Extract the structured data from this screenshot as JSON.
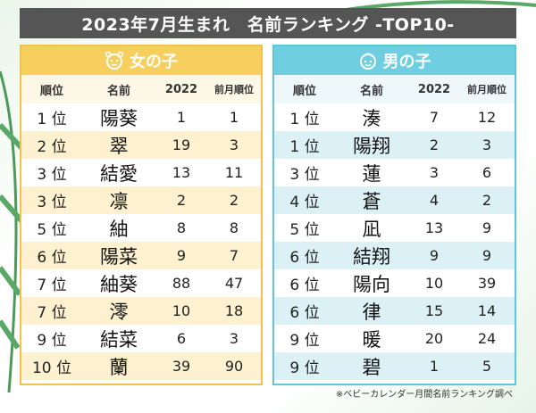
{
  "header": {
    "title": "2023年7月生まれ　名前ランキング -TOP10-"
  },
  "girls": {
    "label": "女の子",
    "columns": [
      "順位",
      "名前",
      "2022",
      "前月順位"
    ],
    "rows": [
      [
        "1 位",
        "陽葵",
        "1",
        "1"
      ],
      [
        "2 位",
        "翠",
        "19",
        "3"
      ],
      [
        "3 位",
        "結愛",
        "13",
        "11"
      ],
      [
        "3 位",
        "凛",
        "2",
        "2"
      ],
      [
        "5 位",
        "紬",
        "8",
        "8"
      ],
      [
        "6 位",
        "陽菜",
        "9",
        "7"
      ],
      [
        "7 位",
        "紬葵",
        "88",
        "47"
      ],
      [
        "7 位",
        "澪",
        "10",
        "18"
      ],
      [
        "9 位",
        "結菜",
        "6",
        "3"
      ],
      [
        "10 位",
        "蘭",
        "39",
        "90"
      ]
    ]
  },
  "boys": {
    "label": "男の子",
    "columns": [
      "順位",
      "名前",
      "2022",
      "前月順位"
    ],
    "rows": [
      [
        "1 位",
        "湊",
        "7",
        "12"
      ],
      [
        "1 位",
        "陽翔",
        "2",
        "3"
      ],
      [
        "3 位",
        "蓮",
        "3",
        "6"
      ],
      [
        "4 位",
        "蒼",
        "4",
        "2"
      ],
      [
        "5 位",
        "凪",
        "13",
        "9"
      ],
      [
        "6 位",
        "結翔",
        "9",
        "9"
      ],
      [
        "6 位",
        "陽向",
        "10",
        "39"
      ],
      [
        "6 位",
        "律",
        "15",
        "14"
      ],
      [
        "9 位",
        "暖",
        "20",
        "24"
      ],
      [
        "9 位",
        "碧",
        "1",
        "5"
      ]
    ]
  },
  "footer": {
    "note": "※ベビーカレンダー月間名前ランキング調べ"
  }
}
